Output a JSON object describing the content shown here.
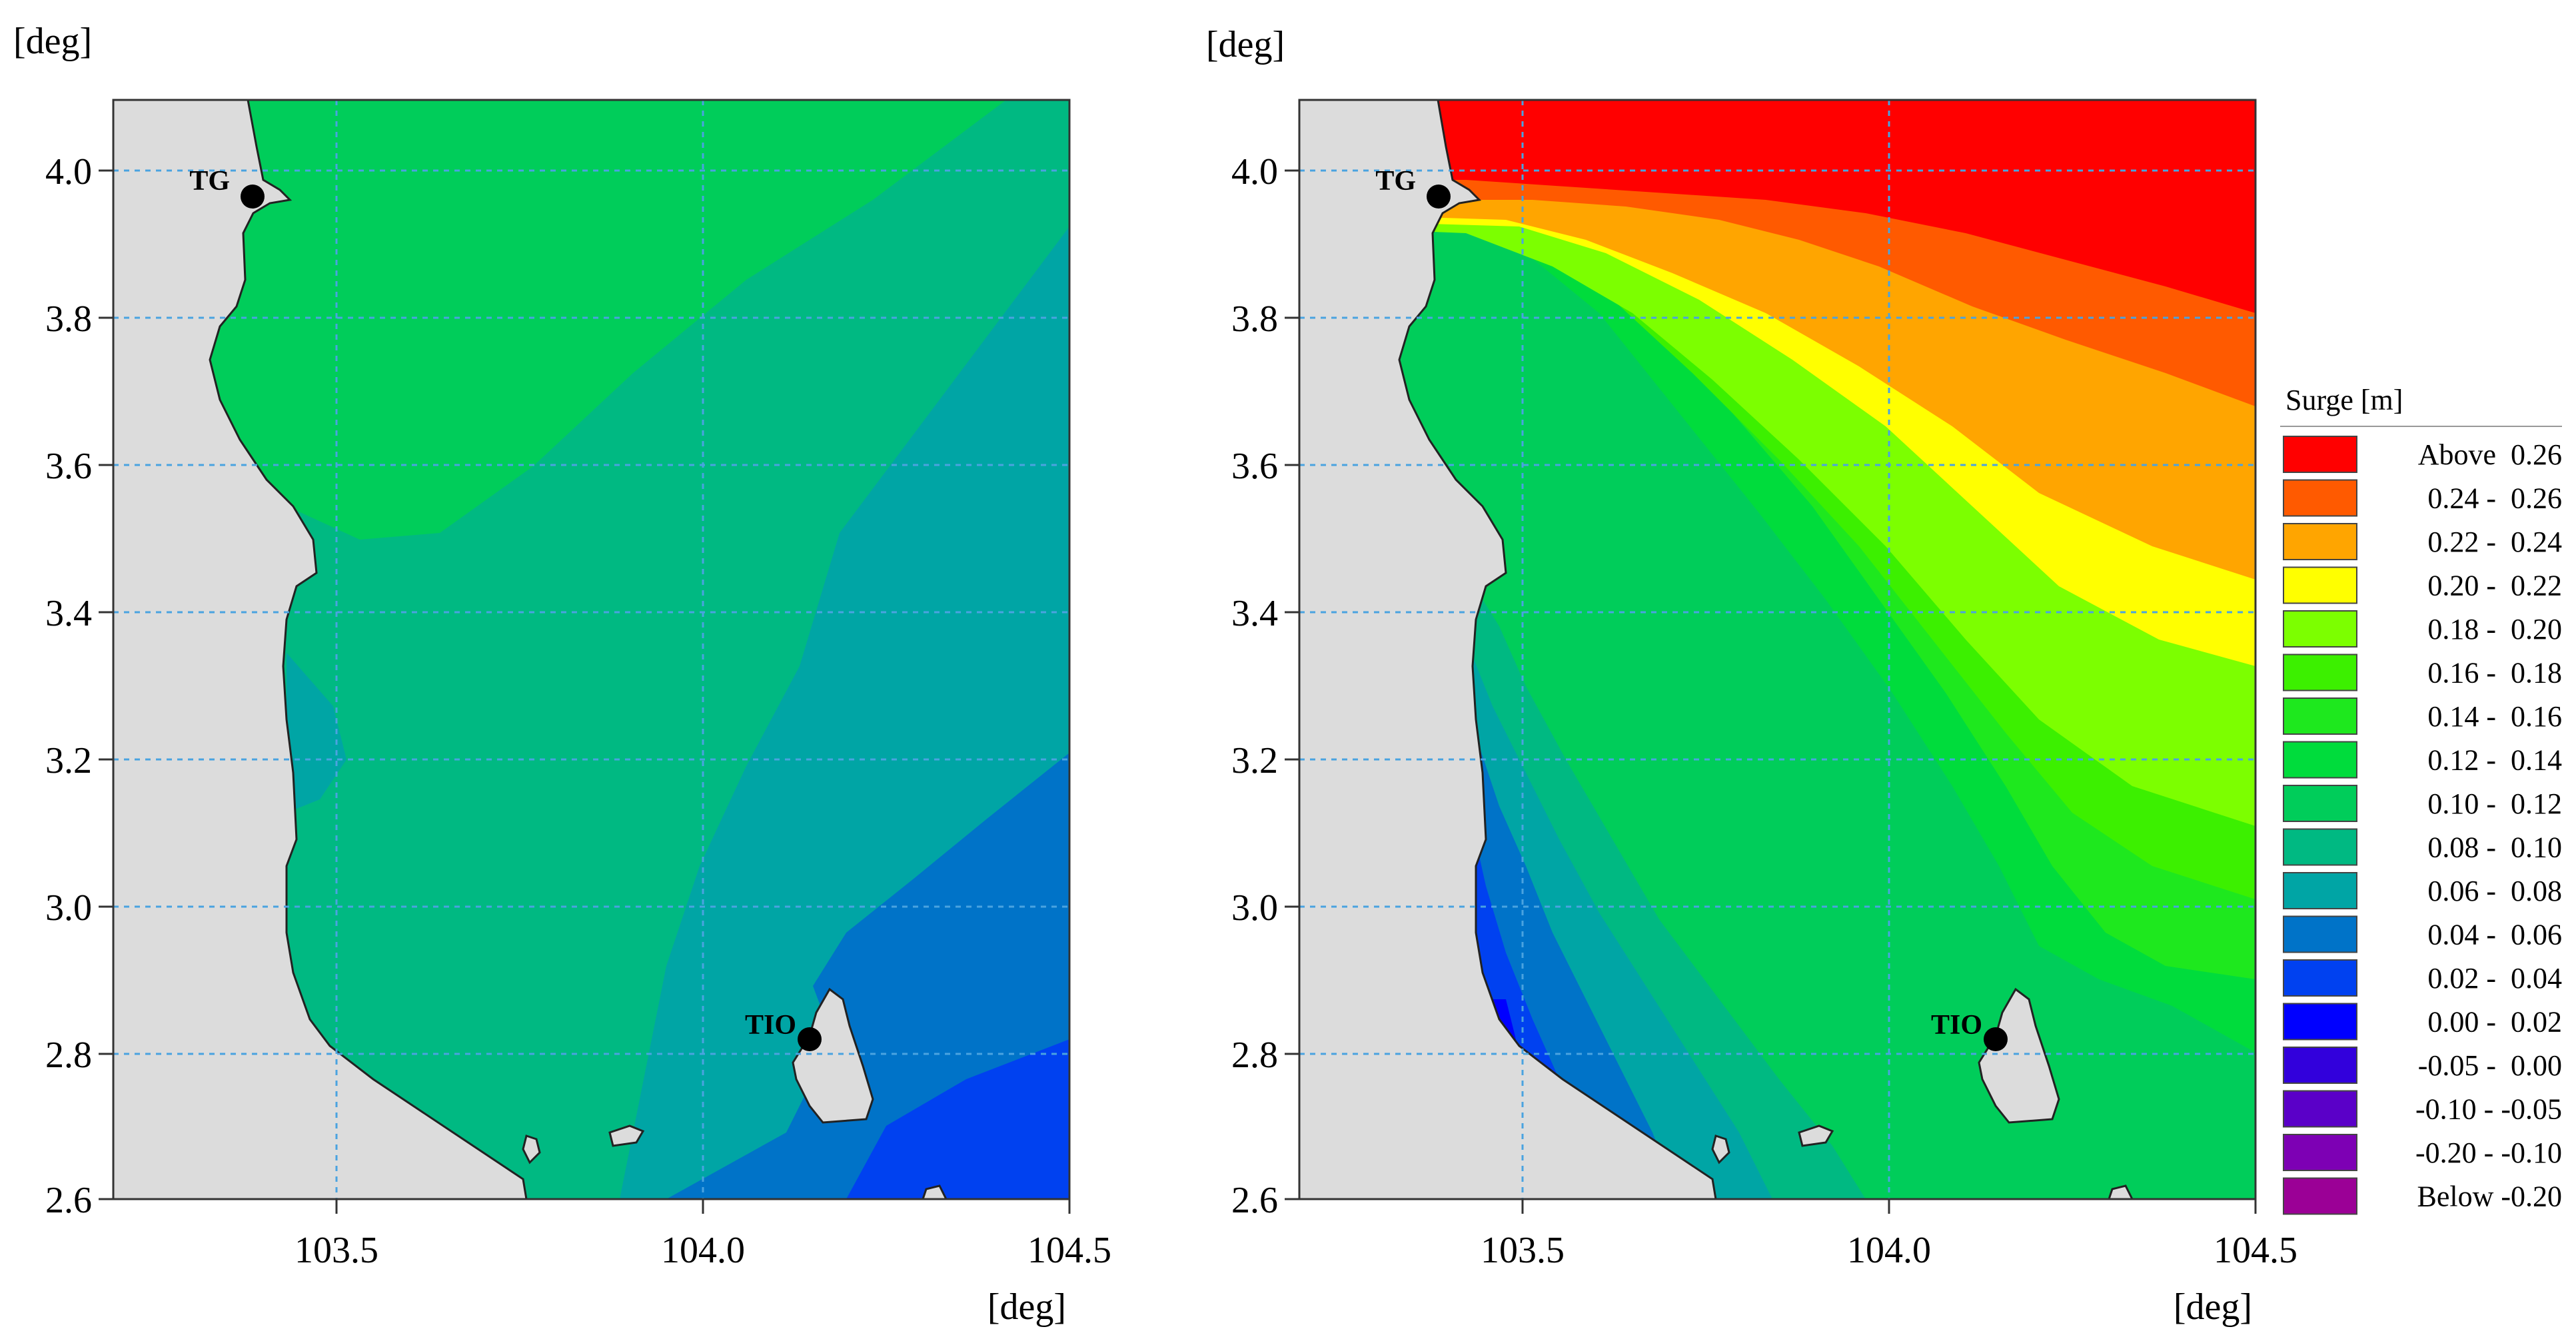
{
  "colors": {
    "land": "#dcdcdc",
    "grid": "#4aa3e0"
  },
  "panels": [
    {
      "id": "left",
      "y_axis_unit": "[deg]",
      "x_axis_unit": "[deg]",
      "x_ticks": [
        "103.5",
        "104.0",
        "104.5"
      ],
      "y_ticks": [
        "4.0",
        "3.8",
        "3.6",
        "3.4",
        "3.2",
        "3.0",
        "2.8",
        "2.6"
      ],
      "stations": [
        {
          "label": "TG",
          "lon": 103.39,
          "lat": 3.97
        },
        {
          "label": "TIO",
          "lon": 104.15,
          "lat": 2.82
        }
      ]
    },
    {
      "id": "right",
      "y_axis_unit": "[deg]",
      "x_axis_unit": "[deg]",
      "x_ticks": [
        "103.5",
        "104.0",
        "104.5"
      ],
      "y_ticks": [
        "4.0",
        "3.8",
        "3.6",
        "3.4",
        "3.2",
        "3.0",
        "2.8",
        "2.6"
      ],
      "stations": [
        {
          "label": "TG",
          "lon": 103.39,
          "lat": 3.97
        },
        {
          "label": "TIO",
          "lon": 104.15,
          "lat": 2.82
        }
      ]
    }
  ],
  "legend": {
    "title": "Surge [m]",
    "items": [
      {
        "label": "Above  0.26",
        "color": "#ff0000"
      },
      {
        "label": "0.24 -  0.26",
        "color": "#ff5a00"
      },
      {
        "label": "0.22 -  0.24",
        "color": "#ffa500"
      },
      {
        "label": "0.20 -  0.22",
        "color": "#ffff00"
      },
      {
        "label": "0.18 -  0.20",
        "color": "#7cff00"
      },
      {
        "label": "0.16 -  0.18",
        "color": "#3cf000"
      },
      {
        "label": "0.14 -  0.16",
        "color": "#1ee81e"
      },
      {
        "label": "0.12 -  0.14",
        "color": "#00dc3c"
      },
      {
        "label": "0.10 -  0.12",
        "color": "#00cd5a"
      },
      {
        "label": "0.08 -  0.10",
        "color": "#00b982"
      },
      {
        "label": "0.06 -  0.08",
        "color": "#00a5a5"
      },
      {
        "label": "0.04 -  0.06",
        "color": "#0073c8"
      },
      {
        "label": "0.02 -  0.04",
        "color": "#0041f0"
      },
      {
        "label": "0.00 -  0.02",
        "color": "#0000ff"
      },
      {
        "label": "-0.05 -  0.00",
        "color": "#3200dc"
      },
      {
        "label": "-0.10 - -0.05",
        "color": "#5a00c8"
      },
      {
        "label": "-0.20 - -0.10",
        "color": "#7d00b4"
      },
      {
        "label": "Below -0.20",
        "color": "#9b0096"
      }
    ]
  }
}
